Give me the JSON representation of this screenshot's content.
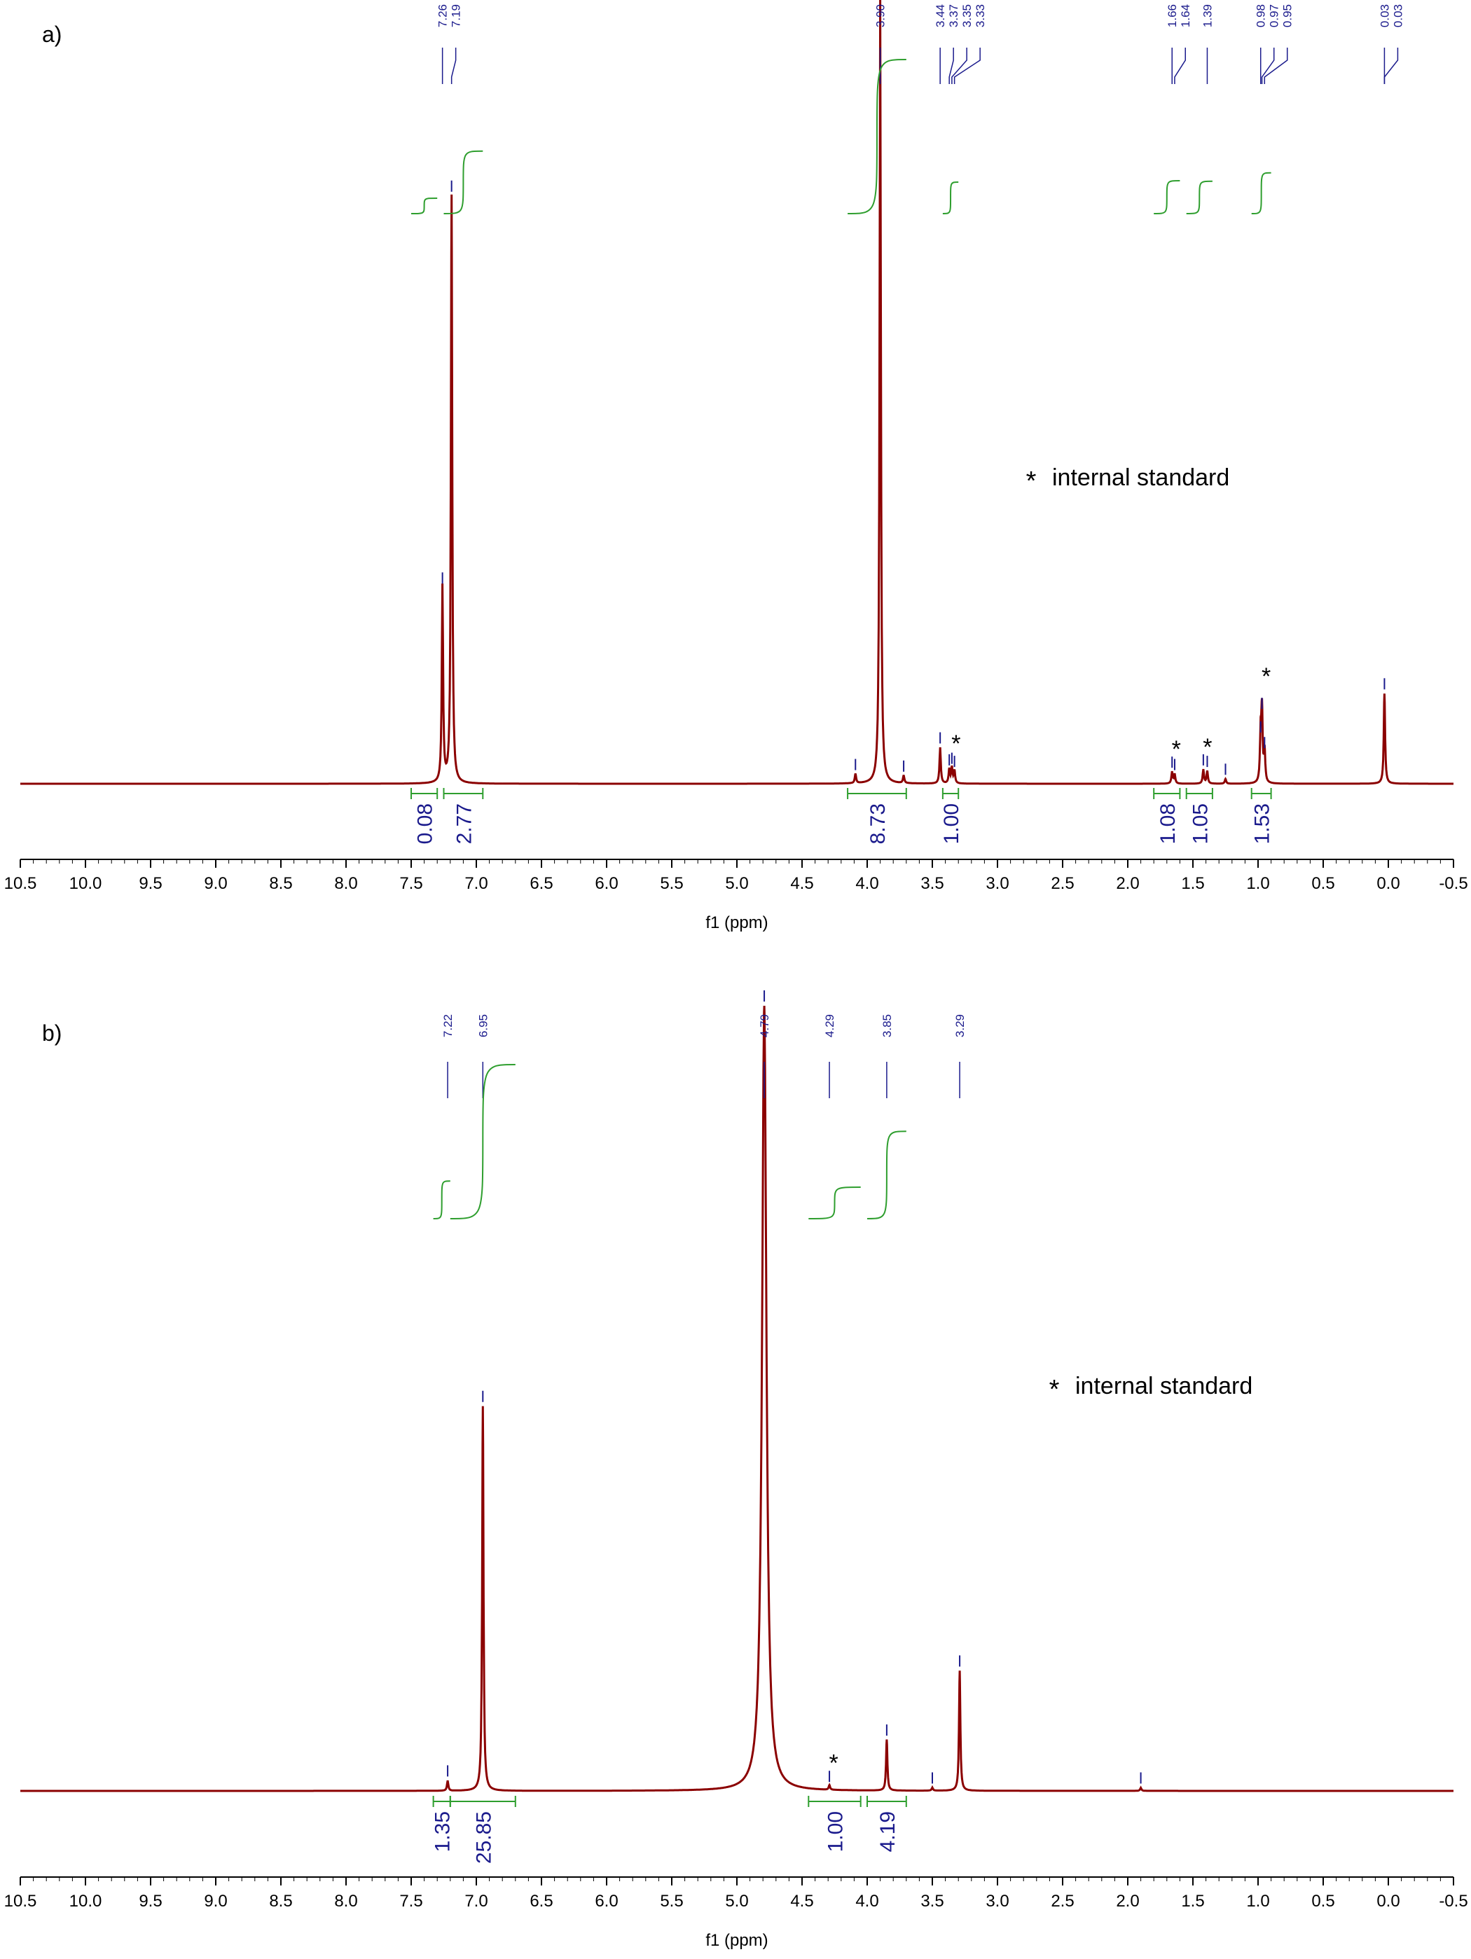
{
  "chart_data": [
    {
      "type": "line",
      "panel_label": "a)",
      "xlabel": "f1 (ppm)",
      "xlim": [
        10.5,
        -0.5
      ],
      "x_ticks": [
        "10.5",
        "10.0",
        "9.5",
        "9.0",
        "8.5",
        "8.0",
        "7.5",
        "7.0",
        "6.5",
        "6.0",
        "5.5",
        "5.0",
        "4.5",
        "4.0",
        "3.5",
        "3.0",
        "2.5",
        "2.0",
        "1.5",
        "1.0",
        "0.5",
        "0.0",
        "-0.5"
      ],
      "annotation": "internal standard",
      "annotation_symbol": "*",
      "peaks": [
        {
          "ppm": 7.26,
          "intensity": 0.25
        },
        {
          "ppm": 7.19,
          "intensity": 0.75
        },
        {
          "ppm": 3.9,
          "intensity": 1.0
        },
        {
          "ppm": 4.09,
          "intensity": 0.012
        },
        {
          "ppm": 3.72,
          "intensity": 0.01
        },
        {
          "ppm": 3.44,
          "intensity": 0.046
        },
        {
          "ppm": 3.37,
          "intensity": 0.018
        },
        {
          "ppm": 3.35,
          "intensity": 0.02
        },
        {
          "ppm": 3.33,
          "intensity": 0.016
        },
        {
          "ppm": 1.66,
          "intensity": 0.015
        },
        {
          "ppm": 1.64,
          "intensity": 0.012
        },
        {
          "ppm": 1.42,
          "intensity": 0.018
        },
        {
          "ppm": 1.39,
          "intensity": 0.016
        },
        {
          "ppm": 1.25,
          "intensity": 0.006
        },
        {
          "ppm": 0.98,
          "intensity": 0.06
        },
        {
          "ppm": 0.97,
          "intensity": 0.09
        },
        {
          "ppm": 0.95,
          "intensity": 0.04
        },
        {
          "ppm": 0.03,
          "intensity": 0.115
        }
      ],
      "peak_labels": [
        "7.26",
        "7.19",
        "3.90",
        "3.44",
        "3.37",
        "3.35",
        "3.33",
        "1.66",
        "1.64",
        "1.39",
        "0.98",
        "0.97",
        "0.95",
        "0.03",
        "0.03"
      ],
      "peak_label_ppm": [
        7.26,
        7.19,
        3.9,
        3.44,
        3.37,
        3.35,
        3.33,
        1.66,
        1.64,
        1.39,
        0.98,
        0.97,
        0.95,
        0.03,
        0.03
      ],
      "integrals": [
        {
          "from": 7.5,
          "to": 7.3,
          "value": "0.08"
        },
        {
          "from": 7.25,
          "to": 6.95,
          "value": "2.77"
        },
        {
          "from": 4.15,
          "to": 3.7,
          "value": "8.73"
        },
        {
          "from": 3.42,
          "to": 3.3,
          "value": "1.00"
        },
        {
          "from": 1.8,
          "to": 1.6,
          "value": "1.08"
        },
        {
          "from": 1.55,
          "to": 1.35,
          "value": "1.05"
        },
        {
          "from": 1.05,
          "to": 0.9,
          "value": "1.53"
        }
      ],
      "asterisks_ppm": [
        3.35,
        1.66,
        1.42,
        0.97
      ]
    },
    {
      "type": "line",
      "panel_label": "b)",
      "xlabel": "f1 (ppm)",
      "xlim": [
        10.5,
        -0.5
      ],
      "x_ticks": [
        "10.5",
        "10.0",
        "9.5",
        "9.0",
        "8.5",
        "8.0",
        "7.5",
        "7.0",
        "6.5",
        "6.0",
        "5.5",
        "5.0",
        "4.5",
        "4.0",
        "3.5",
        "3.0",
        "2.5",
        "2.0",
        "1.5",
        "1.0",
        "0.5",
        "0.0",
        "-0.5"
      ],
      "annotation": "internal standard",
      "annotation_symbol": "*",
      "peaks": [
        {
          "ppm": 7.22,
          "intensity": 0.013
        },
        {
          "ppm": 6.95,
          "intensity": 0.49
        },
        {
          "ppm": 4.79,
          "intensity": 1.0
        },
        {
          "ppm": 4.29,
          "intensity": 0.006
        },
        {
          "ppm": 3.85,
          "intensity": 0.065
        },
        {
          "ppm": 3.5,
          "intensity": 0.004
        },
        {
          "ppm": 3.29,
          "intensity": 0.153
        },
        {
          "ppm": 1.9,
          "intensity": 0.004
        }
      ],
      "peak_labels": [
        "7.22",
        "6.95",
        "4.79",
        "4.29",
        "3.85",
        "3.29"
      ],
      "peak_label_ppm": [
        7.22,
        6.95,
        4.79,
        4.29,
        3.85,
        3.29
      ],
      "integrals": [
        {
          "from": 7.33,
          "to": 7.2,
          "value": "1.35"
        },
        {
          "from": 7.2,
          "to": 6.7,
          "value": "25.85"
        },
        {
          "from": 4.45,
          "to": 4.05,
          "value": "1.00"
        },
        {
          "from": 4.0,
          "to": 3.7,
          "value": "4.19"
        }
      ],
      "asterisks_ppm": [
        4.29
      ]
    }
  ],
  "colors": {
    "spectrum": "#8b0000",
    "integral": "#2e9e2e",
    "labels": "#1a1a8c"
  }
}
